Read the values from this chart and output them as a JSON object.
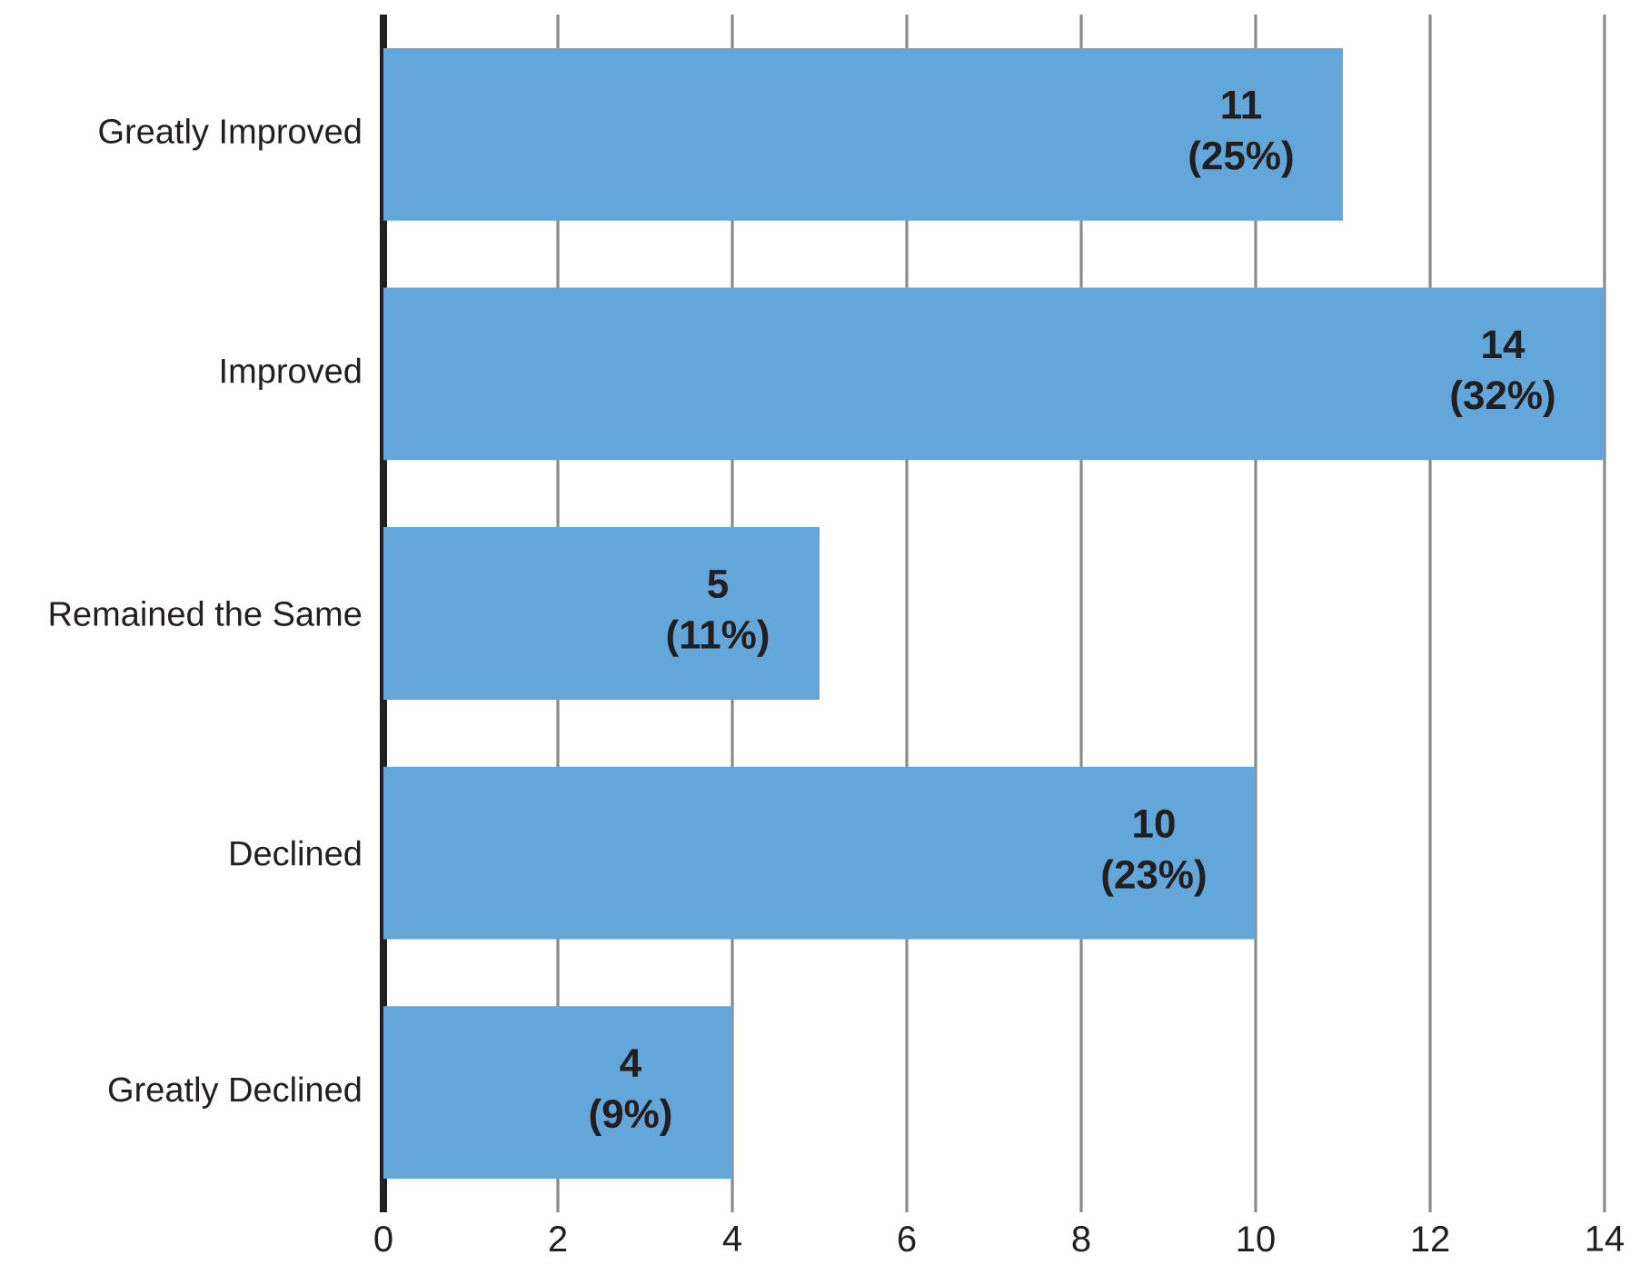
{
  "chart_data": {
    "type": "bar",
    "orientation": "horizontal",
    "categories": [
      "Greatly Improved",
      "Improved",
      "Remained the Same",
      "Declined",
      "Greatly Declined"
    ],
    "values": [
      11,
      14,
      5,
      10,
      4
    ],
    "color": "#63a6da",
    "value_labels": [
      "11 (25%)",
      "14 (32%)",
      "5 (11%)",
      "10 (23%)",
      "4 (9%)"
    ],
    "xlim": [
      0,
      14
    ],
    "xticks": [
      0,
      2,
      4,
      6,
      8,
      10,
      12,
      14
    ],
    "grid": "x"
  }
}
